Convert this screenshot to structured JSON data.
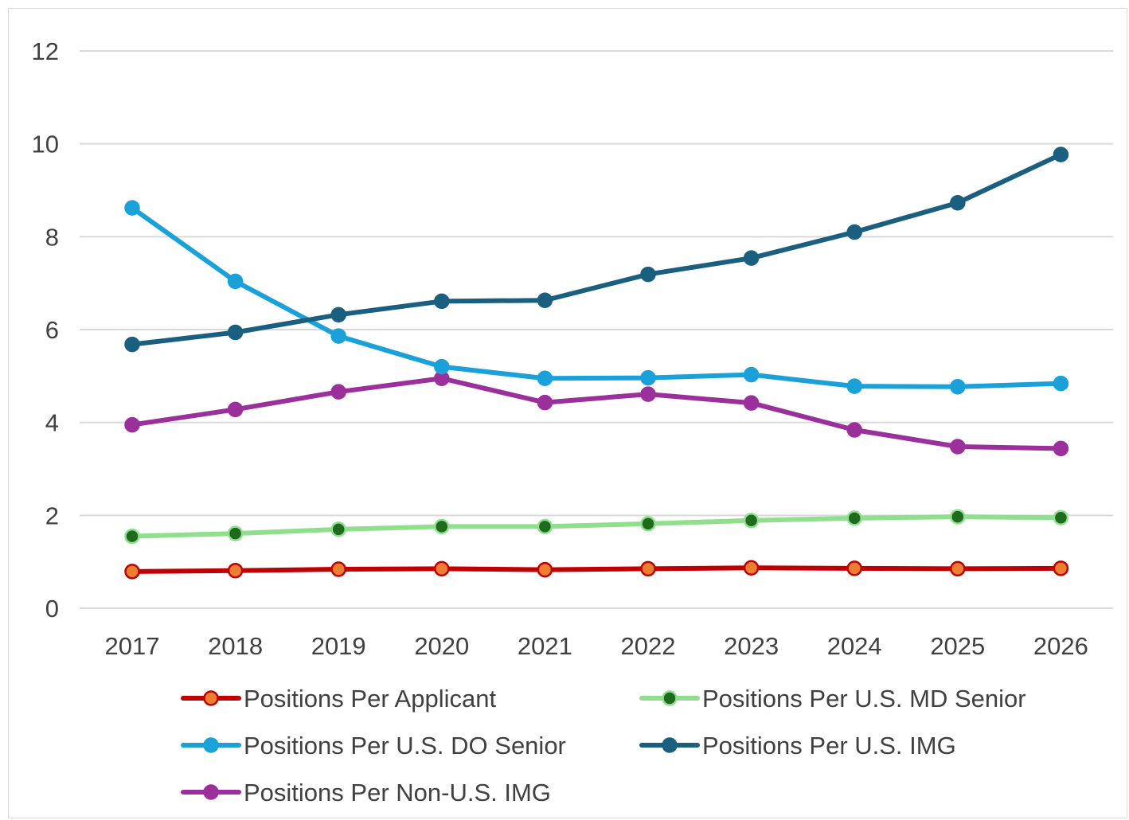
{
  "chart_data": {
    "type": "line",
    "title": "",
    "xlabel": "",
    "ylabel": "",
    "ylim": [
      0,
      12
    ],
    "yticks": [
      "0",
      "2",
      "4",
      "6",
      "8",
      "10",
      "12"
    ],
    "categories": [
      "2017",
      "2018",
      "2019",
      "2020",
      "2021",
      "2022",
      "2023",
      "2024",
      "2025",
      "2026"
    ],
    "grid": true,
    "legend_position": "bottom",
    "series": [
      {
        "name": "Positions Per Applicant",
        "line_color": "#c00000",
        "marker_fill": "#ed7d31",
        "marker_stroke": "#c00000",
        "values": [
          0.79,
          0.81,
          0.84,
          0.85,
          0.83,
          0.85,
          0.87,
          0.86,
          0.85,
          0.86
        ]
      },
      {
        "name": "Positions Per U.S. MD Senior",
        "line_color": "#8fdf8f",
        "marker_fill": "#1e6b1e",
        "marker_stroke": "#8fdf8f",
        "values": [
          1.55,
          1.61,
          1.7,
          1.76,
          1.76,
          1.82,
          1.89,
          1.94,
          1.97,
          1.95
        ]
      },
      {
        "name": "Positions Per U.S. DO Senior",
        "line_color": "#1ba1d9",
        "marker_fill": "#1ba1d9",
        "marker_stroke": "#1ba1d9",
        "values": [
          8.62,
          7.04,
          5.86,
          5.2,
          4.95,
          4.96,
          5.03,
          4.78,
          4.77,
          4.84
        ]
      },
      {
        "name": "Positions Per U.S. IMG",
        "line_color": "#1a5f7f",
        "marker_fill": "#1a5f7f",
        "marker_stroke": "#1a5f7f",
        "values": [
          5.68,
          5.94,
          6.32,
          6.61,
          6.63,
          7.19,
          7.54,
          8.1,
          8.73,
          9.77
        ]
      },
      {
        "name": "Positions Per Non-U.S. IMG",
        "line_color": "#9b2f9b",
        "marker_fill": "#9b2f9b",
        "marker_stroke": "#9b2f9b",
        "values": [
          3.95,
          4.28,
          4.66,
          4.95,
          4.43,
          4.61,
          4.42,
          3.84,
          3.48,
          3.44
        ]
      }
    ]
  }
}
